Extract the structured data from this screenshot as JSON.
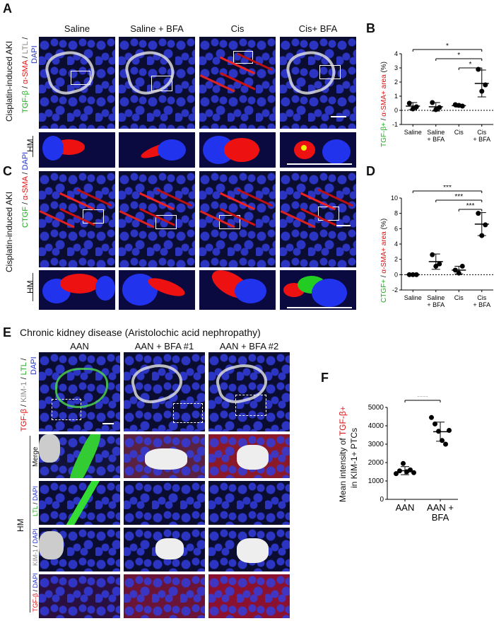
{
  "panels": {
    "A": {
      "letter": "A",
      "side_label": "Cisplatin-induced AKI",
      "stain_label": [
        "TGF-β",
        " / ",
        "α-SMA",
        " / ",
        "LTL",
        " /",
        "DAPI"
      ],
      "hm_label": "HM",
      "columns": [
        "Saline",
        "Saline + BFA",
        "Cis",
        "Cis+ BFA"
      ]
    },
    "B": {
      "letter": "B",
      "ylabel_parts": [
        "TGF-β+",
        "  / ",
        "α-SMA+ area",
        " (%)"
      ]
    },
    "C": {
      "letter": "C",
      "side_label": "Cisplatin-induced AKI",
      "stain_label": [
        "CTGF",
        " / ",
        "α-SMA",
        " / ",
        "DAPI"
      ],
      "hm_label": "HM"
    },
    "D": {
      "letter": "D",
      "ylabel_parts": [
        "CTGF+",
        "  / ",
        "α-SMA+ area",
        " (%)"
      ]
    },
    "E": {
      "letter": "E",
      "title": "Chronic kidney disease (Aristolochic acid nephropathy)",
      "columns": [
        "AAN",
        "AAN + BFA #1",
        "AAN + BFA #2"
      ],
      "stain_label": [
        "TGF-β",
        " / ",
        "KIM-1",
        " / ",
        "LTL",
        " /",
        "DAPI"
      ],
      "hm_label": "HM",
      "rows": [
        {
          "label": "Merge"
        },
        {
          "label_parts": [
            "LTL",
            " / ",
            "DAPI"
          ]
        },
        {
          "label_parts": [
            "KIM-1",
            " / ",
            "DAPI"
          ]
        },
        {
          "label_parts": [
            "TGF-β",
            " / ",
            "DAPI"
          ]
        }
      ]
    },
    "F": {
      "letter": "F",
      "ylabel_line1_parts": [
        "Mean intensity of ",
        "TGF-β+"
      ],
      "ylabel_line2": "in KIM-1+ PTCs"
    }
  },
  "colors": {
    "green": "#22aa22",
    "red": "#dd1111",
    "blue": "#2233cc",
    "gray": "#888888"
  },
  "chart_data": [
    {
      "id": "B",
      "type": "scatter",
      "title": "",
      "categories": [
        "Saline",
        "Saline\n+ BFA",
        "Cis",
        "Cis\n+ BFA"
      ],
      "ylim": [
        -1,
        4
      ],
      "yticks": [
        -1,
        0,
        1,
        2,
        3,
        4
      ],
      "ylabel": "TGF-β+ / α-SMA+ area (%)",
      "reference_line": 0,
      "points": [
        [
          0.5,
          0.1,
          0.25
        ],
        [
          0.55,
          0.05,
          0.2
        ],
        [
          0.4,
          0.35,
          0.3
        ],
        [
          2.9,
          1.35,
          1.8
        ]
      ],
      "means": [
        0.3,
        0.25,
        0.33,
        1.9
      ],
      "errors": [
        0.25,
        0.3,
        0.1,
        0.95
      ],
      "significance": [
        {
          "from": 0,
          "to": 3,
          "label": "*"
        },
        {
          "from": 1,
          "to": 3,
          "label": "*"
        },
        {
          "from": 2,
          "to": 3,
          "label": "*"
        }
      ]
    },
    {
      "id": "D",
      "type": "scatter",
      "title": "",
      "categories": [
        "Saline",
        "Saline\n+ BFA",
        "Cis",
        "Cis\n+ BFA"
      ],
      "ylim": [
        -2,
        10
      ],
      "yticks": [
        -2,
        0,
        2,
        4,
        6,
        8,
        10
      ],
      "ylabel": "CTGF+ / α-SMA+ area (%)",
      "reference_line": 0,
      "points": [
        [
          0,
          0,
          0
        ],
        [
          2.6,
          1.1,
          1.4
        ],
        [
          0.6,
          0.2,
          1.1
        ],
        [
          8.0,
          5.1,
          6.5
        ]
      ],
      "means": [
        0,
        1.7,
        0.6,
        6.6
      ],
      "errors": [
        0,
        1.0,
        0.5,
        1.5
      ],
      "significance": [
        {
          "from": 0,
          "to": 3,
          "label": "***"
        },
        {
          "from": 1,
          "to": 3,
          "label": "***"
        },
        {
          "from": 2,
          "to": 3,
          "label": "***"
        }
      ]
    },
    {
      "id": "F",
      "type": "scatter",
      "title": "",
      "categories": [
        "AAN",
        "AAN +\nBFA"
      ],
      "ylim": [
        0,
        5000
      ],
      "yticks": [
        0,
        1000,
        2000,
        3000,
        4000,
        5000
      ],
      "ylabel": "Mean intensity of TGF-β+ in KIM-1+ PTCs",
      "points": [
        [
          1400,
          1550,
          1950,
          1500,
          1600,
          1450
        ],
        [
          4450,
          4100,
          3700,
          3200,
          3000,
          3750
        ]
      ],
      "means": [
        1560,
        3680
      ],
      "errors": [
        220,
        520
      ],
      "significance": [
        {
          "from": 0,
          "to": 1,
          "label": "****"
        }
      ]
    }
  ]
}
